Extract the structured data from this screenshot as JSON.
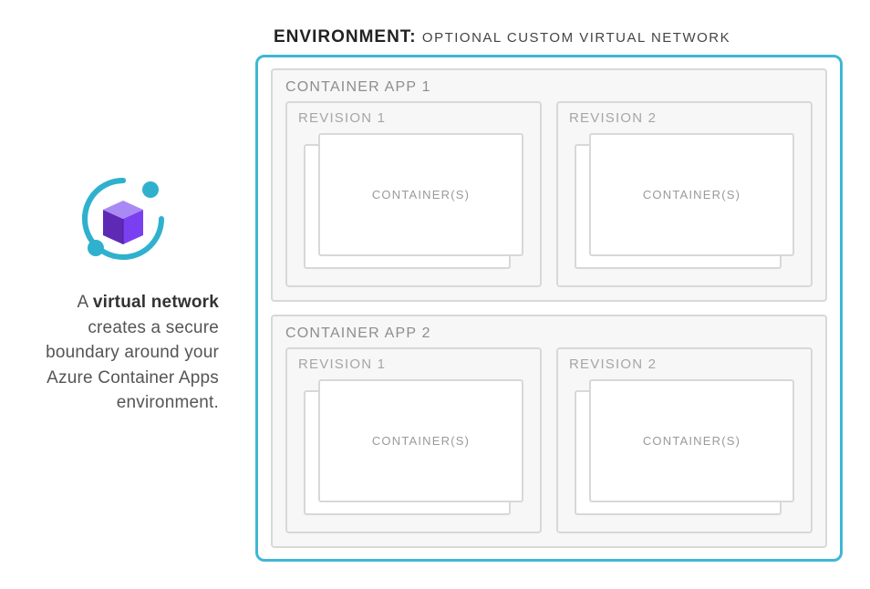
{
  "colors": {
    "env_border": "#3fb7d6",
    "box_border": "#d8d8d8",
    "box_bg": "#f7f7f7",
    "app_title": "#8e8e8e",
    "rev_title": "#a6a6a6",
    "container_label": "#9a9a9a",
    "text_body": "#555555",
    "text_dark": "#222222",
    "icon_teal": "#2fb1ce",
    "icon_purple_dark": "#5e2ab5",
    "icon_purple_mid": "#7b3ff2",
    "icon_purple_light": "#a98af5"
  },
  "description": {
    "prefix": "A ",
    "bold": "virtual network",
    "rest": " creates a secure boundary around your Azure Container Apps environment."
  },
  "environment": {
    "label_bold": "ENVIRONMENT:",
    "label_sub": "OPTIONAL CUSTOM VIRTUAL NETWORK",
    "apps": [
      {
        "title": "CONTAINER APP 1",
        "revisions": [
          {
            "title": "REVISION 1",
            "container_label": "CONTAINER(S)"
          },
          {
            "title": "REVISION 2",
            "container_label": "CONTAINER(S)"
          }
        ]
      },
      {
        "title": "CONTAINER APP 2",
        "revisions": [
          {
            "title": "REVISION 1",
            "container_label": "CONTAINER(S)"
          },
          {
            "title": "REVISION 2",
            "container_label": "CONTAINER(S)"
          }
        ]
      }
    ]
  }
}
